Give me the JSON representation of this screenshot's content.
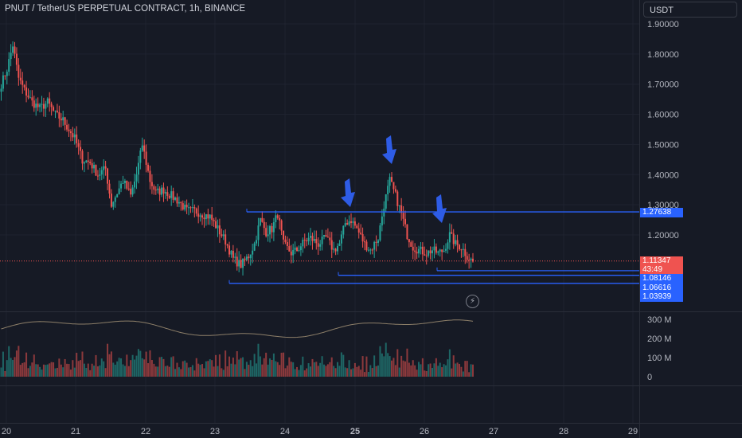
{
  "header": {
    "title": "PNUT / TetherUS PERPETUAL CONTRACT, 1h, BINANCE",
    "currency": "USDT"
  },
  "colors": {
    "background": "#161a25",
    "up": "#26a69a",
    "down": "#ef5350",
    "drawing": "#2962ff",
    "arrow": "#2e5ce6",
    "grid": "#1f2330",
    "axis_text": "#b2b5be",
    "vol_ma": "#8d7f69"
  },
  "icons": {
    "replay": "lightning-bolt-icon"
  },
  "price_axis": {
    "ticks": [
      "1.90000",
      "1.80000",
      "1.70000",
      "1.60000",
      "1.50000",
      "1.40000",
      "1.30000",
      "1.20000"
    ],
    "tick_values": [
      1.9,
      1.8,
      1.7,
      1.6,
      1.5,
      1.4,
      1.3,
      1.2
    ]
  },
  "volume_axis": {
    "ticks": [
      "300 M",
      "200 M",
      "100 M",
      "0"
    ],
    "tick_values": [
      300,
      200,
      100,
      0
    ]
  },
  "time_axis": {
    "labels": [
      "20",
      "21",
      "22",
      "23",
      "24",
      "25",
      "26",
      "27",
      "28",
      "29"
    ],
    "bold": "25"
  },
  "price_labels": {
    "line_top": "1.27638",
    "last_price": "1.11347",
    "countdown": "43:49",
    "line_2": "1.08146",
    "line_3": "1.06616",
    "line_4": "1.03939"
  },
  "drawn_levels": [
    1.27638,
    1.08146,
    1.06616,
    1.03939
  ],
  "chart_data": {
    "type": "candlestick",
    "symbol": "PNUT / TetherUS PERPETUAL CONTRACT",
    "interval": "1h",
    "exchange": "BINANCE",
    "x_range": [
      "20",
      "27"
    ],
    "y_range": [
      0.97,
      1.94
    ],
    "waypoints": [
      [
        0,
        1.7
      ],
      [
        3,
        1.75
      ],
      [
        6,
        1.83
      ],
      [
        9,
        1.72
      ],
      [
        12,
        1.68
      ],
      [
        16,
        1.64
      ],
      [
        20,
        1.62
      ],
      [
        24,
        1.64
      ],
      [
        28,
        1.6
      ],
      [
        32,
        1.58
      ],
      [
        38,
        1.52
      ],
      [
        42,
        1.45
      ],
      [
        46,
        1.44
      ],
      [
        50,
        1.4
      ],
      [
        54,
        1.42
      ],
      [
        57,
        1.3
      ],
      [
        60,
        1.34
      ],
      [
        63,
        1.38
      ],
      [
        67,
        1.33
      ],
      [
        70,
        1.4
      ],
      [
        73,
        1.5
      ],
      [
        77,
        1.38
      ],
      [
        80,
        1.34
      ],
      [
        84,
        1.35
      ],
      [
        88,
        1.33
      ],
      [
        92,
        1.31
      ],
      [
        96,
        1.28
      ],
      [
        100,
        1.28
      ],
      [
        104,
        1.27
      ],
      [
        108,
        1.26
      ],
      [
        112,
        1.22
      ],
      [
        116,
        1.18
      ],
      [
        120,
        1.12
      ],
      [
        124,
        1.1
      ],
      [
        128,
        1.13
      ],
      [
        131,
        1.17
      ],
      [
        134,
        1.25
      ],
      [
        137,
        1.21
      ],
      [
        140,
        1.22
      ],
      [
        143,
        1.27
      ],
      [
        146,
        1.17
      ],
      [
        150,
        1.14
      ],
      [
        153,
        1.15
      ],
      [
        157,
        1.18
      ],
      [
        160,
        1.19
      ],
      [
        164,
        1.17
      ],
      [
        168,
        1.19
      ],
      [
        172,
        1.15
      ],
      [
        175,
        1.17
      ],
      [
        178,
        1.24
      ],
      [
        181,
        1.25
      ],
      [
        184,
        1.22
      ],
      [
        188,
        1.17
      ],
      [
        191,
        1.15
      ],
      [
        195,
        1.19
      ],
      [
        198,
        1.3
      ],
      [
        201,
        1.38
      ],
      [
        204,
        1.33
      ],
      [
        207,
        1.27
      ],
      [
        210,
        1.2
      ],
      [
        213,
        1.16
      ],
      [
        216,
        1.15
      ],
      [
        220,
        1.14
      ],
      [
        223,
        1.15
      ],
      [
        226,
        1.14
      ],
      [
        229,
        1.15
      ],
      [
        232,
        1.2
      ],
      [
        235,
        1.17
      ],
      [
        238,
        1.16
      ],
      [
        241,
        1.13
      ],
      [
        244,
        1.11
      ]
    ],
    "volume_max_M": 210,
    "volume_ma_range_M": [
      200,
      305
    ]
  }
}
